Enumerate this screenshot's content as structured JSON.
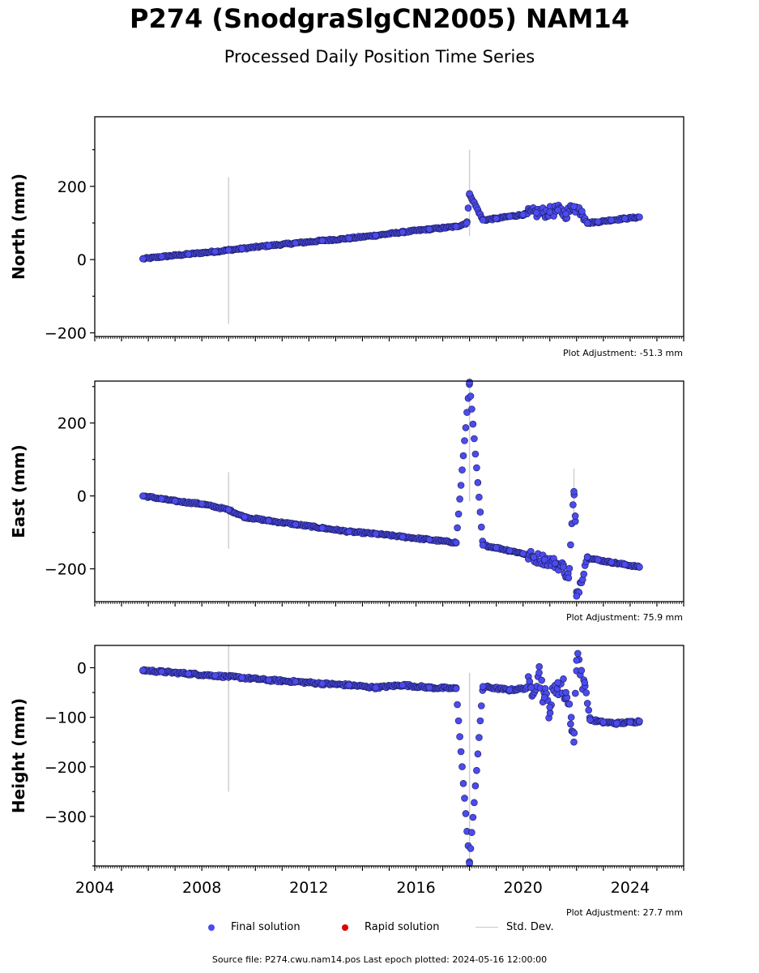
{
  "header": {
    "title": "P274 (SnodgraSlgCN2005) NAM14",
    "subtitle": "Processed Daily Position Time Series"
  },
  "chart_data": {
    "type": "scatter",
    "x_axis": {
      "ticks": [
        "2004",
        "2008",
        "2012",
        "2016",
        "2020",
        "2024"
      ],
      "range": [
        2004,
        2026
      ]
    },
    "panels": [
      {
        "ylabel": "North (mm)",
        "ylim": [
          -210,
          390
        ],
        "yticks": [
          -200,
          0,
          200
        ],
        "adjustment": "Plot Adjustment: -51.3 mm",
        "series": [
          {
            "name": "Final solution",
            "x": [
              2005.8,
              2006.5,
              2007.5,
              2008.5,
              2009.0,
              2009.5,
              2010.5,
              2011.5,
              2012.5,
              2013.5,
              2014.5,
              2015.5,
              2016.5,
              2017.5,
              2017.9,
              2018.0,
              2018.5,
              2019.0,
              2019.5,
              2020.0,
              2020.5,
              2021.0,
              2021.3,
              2021.6,
              2021.9,
              2022.2,
              2022.4,
              2022.8,
              2023.3,
              2023.8,
              2024.35
            ],
            "y": [
              2,
              8,
              15,
              22,
              26,
              30,
              38,
              45,
              52,
              58,
              66,
              75,
              83,
              90,
              100,
              180,
              108,
              112,
              118,
              123,
              128,
              130,
              135,
              125,
              145,
              132,
              100,
              103,
              108,
              112,
              116
            ]
          },
          {
            "name": "Rapid solution",
            "x": [],
            "y": []
          }
        ],
        "std_dev": [
          {
            "x": 2009.0,
            "low": -175,
            "high": 225
          },
          {
            "x": 2018.0,
            "low": 65,
            "high": 300
          }
        ]
      },
      {
        "ylabel": "East (mm)",
        "ylim": [
          -290,
          315
        ],
        "yticks": [
          -200,
          0,
          200
        ],
        "adjustment": "Plot Adjustment: 75.9 mm",
        "series": [
          {
            "name": "Final solution",
            "x": [
              2005.8,
              2006.5,
              2007.0,
              2008.0,
              2009.0,
              2009.6,
              2010.5,
              2011.5,
              2012.5,
              2013.5,
              2014.5,
              2015.5,
              2016.5,
              2017.5,
              2018.0,
              2018.5,
              2019.0,
              2019.5,
              2020.0,
              2020.4,
              2020.8,
              2021.2,
              2021.5,
              2021.7,
              2021.9,
              2021.95,
              2022.0,
              2022.4,
              2022.8,
              2023.3,
              2023.8,
              2024.35
            ],
            "y": [
              0,
              -8,
              -14,
              -22,
              -38,
              -58,
              -68,
              -78,
              -88,
              -98,
              -104,
              -112,
              -120,
              -128,
              312,
              -135,
              -142,
              -150,
              -158,
              -168,
              -175,
              -185,
              -195,
              -225,
              12,
              -55,
              -275,
              -168,
              -176,
              -182,
              -188,
              -195
            ]
          },
          {
            "name": "Rapid solution",
            "x": [],
            "y": []
          }
        ],
        "std_dev": [
          {
            "x": 2009.0,
            "low": -145,
            "high": 65
          },
          {
            "x": 2018.0,
            "low": -15,
            "high": 315
          },
          {
            "x": 2021.9,
            "low": -80,
            "high": 75
          }
        ]
      },
      {
        "ylabel": "Height (mm)",
        "ylim": [
          -400,
          45
        ],
        "yticks": [
          -300,
          -200,
          -100,
          0
        ],
        "adjustment": "Plot Adjustment: 27.7 mm",
        "series": [
          {
            "name": "Final solution",
            "x": [
              2005.8,
              2006.5,
              2007.5,
              2008.5,
              2009.5,
              2010.5,
              2011.5,
              2012.5,
              2013.5,
              2014.5,
              2015.5,
              2016.5,
              2017.5,
              2018.0,
              2018.5,
              2019.5,
              2020.3,
              2020.6,
              2020.8,
              2021.0,
              2021.3,
              2021.6,
              2021.8,
              2021.9,
              2022.0,
              2022.3,
              2022.5,
              2023.0,
              2023.5,
              2024.0,
              2024.35
            ],
            "y": [
              -5,
              -8,
              -12,
              -16,
              -20,
              -25,
              -28,
              -32,
              -35,
              -40,
              -35,
              -40,
              -42,
              -395,
              -38,
              -45,
              -40,
              -10,
              -60,
              -80,
              -30,
              -50,
              -100,
              -150,
              15,
              -30,
              -105,
              -110,
              -112,
              -110,
              -108
            ]
          },
          {
            "name": "Rapid solution",
            "x": [],
            "y": []
          }
        ],
        "std_dev": [
          {
            "x": 2009.0,
            "low": -250,
            "high": 45
          },
          {
            "x": 2018.0,
            "low": -400,
            "high": -10
          }
        ]
      }
    ],
    "legend": {
      "placement": "bottom",
      "entries": [
        {
          "label": "Final solution",
          "color": "#4b4bef"
        },
        {
          "label": "Rapid solution",
          "color": "#e00000"
        },
        {
          "label": "Std. Dev.",
          "color": "#c8c8c8"
        }
      ]
    }
  },
  "footer": "Source file: P274.cwu.nam14.pos  Last epoch plotted: 2024-05-16 12:00:00"
}
